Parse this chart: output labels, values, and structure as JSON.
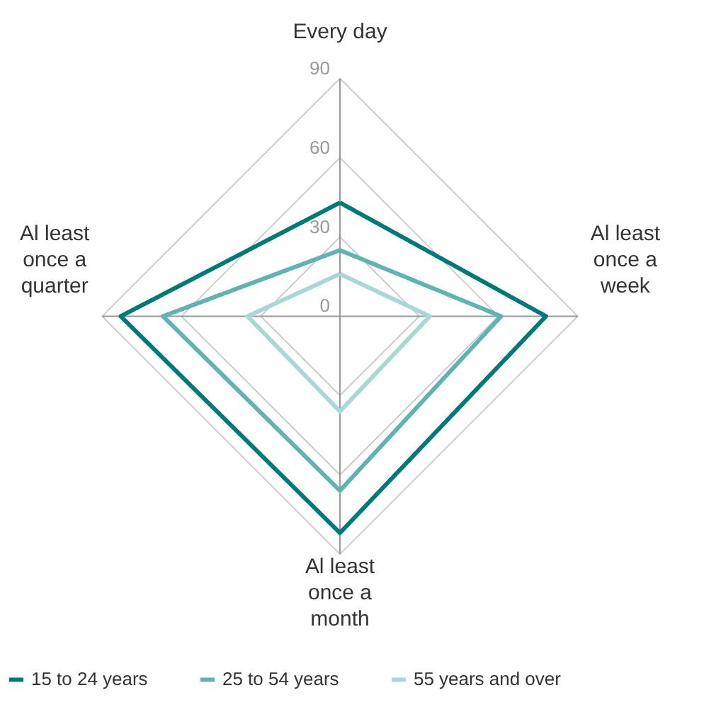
{
  "chart_data": {
    "type": "radar",
    "categories": [
      "Every day",
      "Al least once a week",
      "Al least once a month",
      "Al least once a quarter"
    ],
    "ylim": [
      0,
      90
    ],
    "yticks": [
      0,
      30,
      60,
      90
    ],
    "grid": true,
    "legend": "bottom",
    "line_style": "solid",
    "marker": "none",
    "series": [
      {
        "name": "15 to 24 years",
        "color": "#007a78",
        "values": [
          43,
          78,
          82,
          83
        ]
      },
      {
        "name": "25 to 54 years",
        "color": "#5fb3b0",
        "values": [
          25,
          61,
          66,
          67
        ]
      },
      {
        "name": "55 years and over",
        "color": "#a8d8d6",
        "values": [
          16,
          34,
          36,
          35
        ]
      }
    ]
  }
}
